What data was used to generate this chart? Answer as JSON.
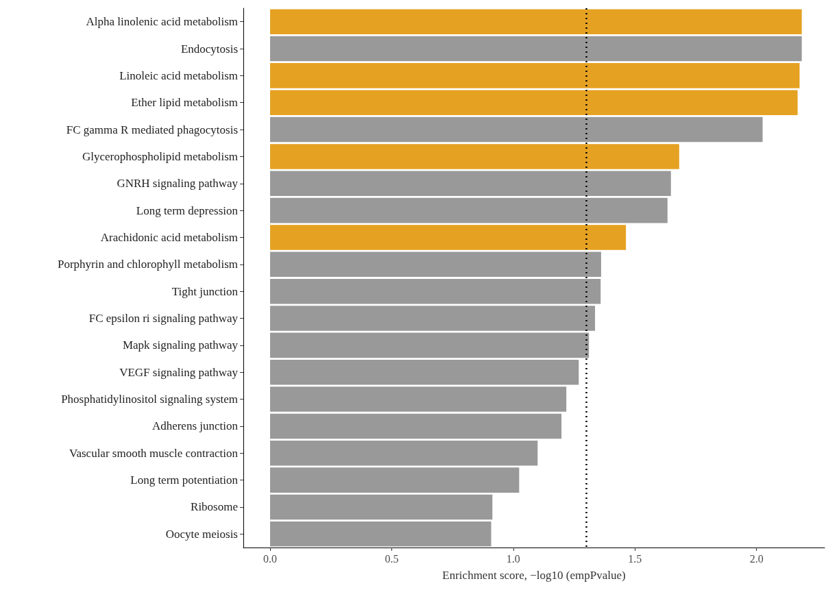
{
  "chart_data": {
    "type": "bar",
    "orientation": "horizontal",
    "xlabel": "Enrichment score, −log10 (empPvalue)",
    "categories": [
      "Alpha linolenic acid metabolism",
      "Endocytosis",
      "Linoleic acid metabolism",
      "Ether lipid metabolism",
      "FC gamma R mediated phagocytosis",
      "Glycerophospholipid metabolism",
      "GNRH signaling pathway",
      "Long term depression",
      "Arachidonic acid metabolism",
      "Porphyrin and chlorophyll metabolism",
      "Tight junction",
      "FC epsilon ri signaling pathway",
      "Mapk signaling pathway",
      "VEGF signaling pathway",
      "Phosphatidylinositol signaling system",
      "Adherens junction",
      "Vascular smooth muscle contraction",
      "Long term potentiation",
      "Ribosome",
      "Oocyte meiosis"
    ],
    "values": [
      2.186,
      2.186,
      2.177,
      2.169,
      2.025,
      1.682,
      1.648,
      1.634,
      1.463,
      1.361,
      1.359,
      1.336,
      1.311,
      1.269,
      1.218,
      1.198,
      1.1,
      1.024,
      0.914,
      0.909
    ],
    "colors": [
      "#e5a122",
      "#999999",
      "#e5a122",
      "#e5a122",
      "#999999",
      "#e5a122",
      "#999999",
      "#999999",
      "#e5a122",
      "#999999",
      "#999999",
      "#999999",
      "#999999",
      "#999999",
      "#999999",
      "#999999",
      "#999999",
      "#999999",
      "#999999",
      "#999999"
    ],
    "xlim": [
      -0.11,
      2.28
    ],
    "xticks": [
      {
        "value": 0,
        "label": "0.0"
      },
      0.5,
      {
        "value": 1,
        "label": "1.0"
      },
      1.5,
      {
        "value": 2,
        "label": "2.0"
      }
    ],
    "ref_lines": [
      {
        "axis": "x",
        "value": 1.3,
        "label": null,
        "color": "#000000",
        "line_style": "dotted"
      }
    ],
    "grid": false
  }
}
